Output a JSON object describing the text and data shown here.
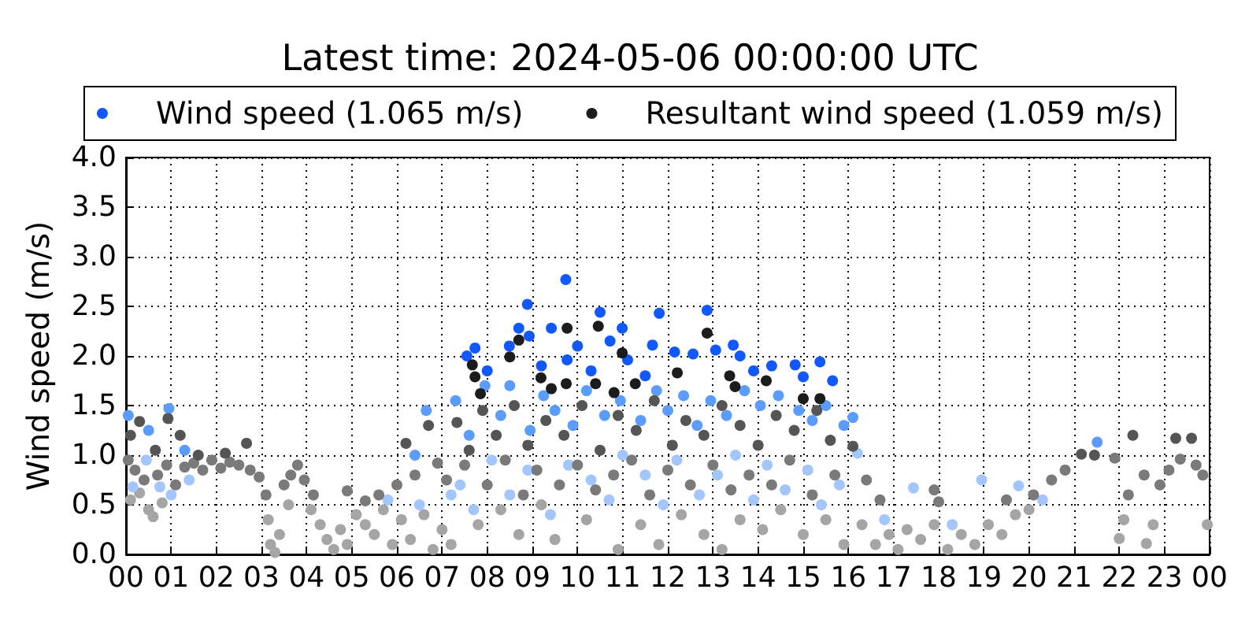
{
  "chart_data": {
    "type": "scatter",
    "title": "Latest time: 2024-05-06 00:00:00 UTC",
    "ylabel": "Wind speed (m/s)",
    "xlim": [
      0,
      24
    ],
    "xticks": [
      {
        "value": 0,
        "label": "00"
      },
      {
        "value": 1,
        "label": "01"
      },
      {
        "value": 2,
        "label": "02"
      },
      {
        "value": 3,
        "label": "03"
      },
      {
        "value": 4,
        "label": "04"
      },
      {
        "value": 5,
        "label": "05"
      },
      {
        "value": 6,
        "label": "06"
      },
      {
        "value": 7,
        "label": "07"
      },
      {
        "value": 8,
        "label": "08"
      },
      {
        "value": 9,
        "label": "09"
      },
      {
        "value": 10,
        "label": "10"
      },
      {
        "value": 11,
        "label": "11"
      },
      {
        "value": 12,
        "label": "12"
      },
      {
        "value": 13,
        "label": "13"
      },
      {
        "value": 14,
        "label": "14"
      },
      {
        "value": 15,
        "label": "15"
      },
      {
        "value": 16,
        "label": "16"
      },
      {
        "value": 17,
        "label": "17"
      },
      {
        "value": 18,
        "label": "18"
      },
      {
        "value": 19,
        "label": "19"
      },
      {
        "value": 20,
        "label": "20"
      },
      {
        "value": 21,
        "label": "21"
      },
      {
        "value": 22,
        "label": "22"
      },
      {
        "value": 23,
        "label": "23"
      },
      {
        "value": 24,
        "label": "00"
      }
    ],
    "ylim": [
      0,
      4
    ],
    "yticks": [
      {
        "value": 0,
        "label": "0.0"
      },
      0.5,
      {
        "value": 1,
        "label": "1.0"
      },
      1.5,
      {
        "value": 2,
        "label": "2.0"
      },
      2.5,
      {
        "value": 3,
        "label": "3.0"
      },
      3.5,
      {
        "value": 4,
        "label": "4.0"
      }
    ],
    "grid": true,
    "legend": "top",
    "marker": "circle",
    "series": [
      {
        "color": "#a5a5a5",
        "x": [
          0.1,
          0.3,
          0.5,
          0.6,
          0.8,
          3.15,
          3.2,
          3.3,
          3.4,
          3.6,
          4.1,
          4.3,
          4.45,
          4.6,
          4.75,
          4.9,
          5.1,
          5.3,
          5.5,
          5.7,
          5.9,
          6.1,
          6.3,
          6.6,
          6.8,
          7.0,
          7.2,
          7.8,
          8.3,
          8.7,
          9.2,
          9.5,
          10.2,
          10.9,
          11.4,
          11.8,
          12.3,
          12.8,
          13.2,
          13.6,
          14.1,
          14.5,
          15.0,
          15.5,
          15.9,
          16.3,
          16.6,
          16.9,
          17.1,
          17.3,
          17.6,
          17.9,
          18.2,
          18.5,
          18.8,
          19.1,
          19.4,
          19.7,
          20.0,
          22.0,
          22.1,
          22.6,
          22.75,
          23.95
        ],
        "values": [
          0.55,
          0.62,
          0.45,
          0.38,
          0.52,
          0.35,
          0.1,
          0.02,
          0.2,
          0.5,
          0.45,
          0.3,
          0.15,
          0.05,
          0.25,
          0.1,
          0.4,
          0.3,
          0.2,
          0.45,
          0.1,
          0.35,
          0.15,
          0.4,
          0.05,
          0.25,
          0.1,
          0.3,
          0.45,
          0.2,
          0.5,
          0.15,
          0.35,
          0.05,
          0.3,
          0.1,
          0.4,
          0.2,
          0.05,
          0.35,
          0.25,
          0.45,
          0.2,
          0.35,
          0.1,
          0.3,
          0.1,
          0.2,
          0.05,
          0.25,
          0.15,
          0.3,
          0.05,
          0.2,
          0.1,
          0.3,
          0.2,
          0.4,
          0.45,
          0.16,
          0.35,
          0.11,
          0.3,
          0.3
        ]
      },
      {
        "color": "#a3c6ff",
        "x": [
          0.15,
          0.45,
          0.75,
          1.0,
          1.4,
          5.8,
          6.5,
          7.2,
          7.4,
          7.7,
          8.1,
          8.5,
          8.9,
          9.4,
          9.8,
          10.3,
          10.7,
          11.0,
          11.5,
          11.9,
          12.2,
          12.7,
          13.1,
          13.5,
          13.9,
          14.2,
          14.6,
          15.1,
          15.4,
          15.8,
          16.2,
          16.8,
          17.44,
          18.3,
          18.95,
          19.77,
          20.3
        ],
        "values": [
          0.68,
          0.95,
          0.68,
          0.6,
          0.75,
          0.55,
          0.5,
          0.6,
          0.7,
          0.45,
          0.95,
          0.6,
          0.85,
          0.4,
          0.9,
          0.75,
          0.55,
          1.0,
          0.8,
          0.5,
          0.95,
          0.6,
          0.8,
          1.0,
          0.55,
          0.9,
          0.65,
          0.85,
          0.5,
          0.7,
          1.02,
          0.35,
          0.67,
          0.3,
          0.75,
          0.69,
          0.55
        ]
      },
      {
        "color": "#7a7a7a",
        "x": [
          0.05,
          0.2,
          0.4,
          0.7,
          0.9,
          1.1,
          1.3,
          1.5,
          1.7,
          1.9,
          2.1,
          2.3,
          2.5,
          2.75,
          2.95,
          3.1,
          3.5,
          3.65,
          3.8,
          3.95,
          4.15,
          4.9,
          5.3,
          5.6,
          6.0,
          6.4,
          6.9,
          7.1,
          7.5,
          8.0,
          8.4,
          8.8,
          9.1,
          9.6,
          10.0,
          10.4,
          10.8,
          11.2,
          11.6,
          12.0,
          12.5,
          13.0,
          13.4,
          13.8,
          14.3,
          14.7,
          15.2,
          15.7,
          16.4,
          16.7,
          17.9,
          18.0,
          19.5,
          20.1,
          20.5,
          20.8,
          21.9,
          22.2,
          22.55,
          22.9,
          23.1,
          23.35,
          23.7,
          23.85
        ],
        "values": [
          0.95,
          0.85,
          0.75,
          0.8,
          0.9,
          0.7,
          0.88,
          0.92,
          0.85,
          0.95,
          0.87,
          0.93,
          0.9,
          0.85,
          0.78,
          0.6,
          0.7,
          0.8,
          0.9,
          0.75,
          0.6,
          0.64,
          0.54,
          0.6,
          0.7,
          0.8,
          0.92,
          0.75,
          0.9,
          0.7,
          0.95,
          0.6,
          0.85,
          0.7,
          0.9,
          0.65,
          0.8,
          0.95,
          0.6,
          0.85,
          0.7,
          0.9,
          0.65,
          0.8,
          0.7,
          0.95,
          0.6,
          0.8,
          0.75,
          0.55,
          0.65,
          0.53,
          0.55,
          0.6,
          0.75,
          0.85,
          0.97,
          0.6,
          0.8,
          0.7,
          0.85,
          0.96,
          0.9,
          0.8
        ]
      },
      {
        "color": "#5a9cff",
        "x": [
          0.05,
          0.5,
          0.95,
          1.3,
          6.4,
          6.65,
          7.3,
          7.6,
          7.95,
          8.3,
          8.5,
          8.95,
          9.25,
          9.5,
          9.9,
          10.2,
          10.6,
          10.95,
          11.4,
          11.75,
          12.0,
          12.35,
          12.65,
          12.95,
          13.3,
          13.7,
          14.05,
          14.45,
          14.9,
          15.2,
          15.5,
          15.9,
          16.1,
          21.51
        ],
        "values": [
          1.4,
          1.25,
          1.47,
          1.05,
          1.0,
          1.45,
          1.55,
          1.2,
          1.7,
          1.4,
          1.7,
          1.25,
          1.6,
          1.45,
          1.3,
          1.65,
          1.4,
          1.55,
          1.35,
          1.65,
          1.45,
          1.6,
          1.3,
          1.55,
          1.4,
          1.65,
          1.5,
          1.6,
          1.45,
          1.35,
          1.5,
          1.3,
          1.38,
          1.13
        ]
      },
      {
        "color": "#555555",
        "x": [
          0.1,
          0.3,
          0.65,
          0.93,
          1.2,
          1.6,
          2.2,
          2.67,
          6.2,
          6.7,
          7.33,
          7.6,
          7.9,
          8.2,
          8.6,
          8.9,
          9.3,
          9.7,
          10.1,
          10.5,
          10.9,
          11.3,
          11.7,
          12.1,
          12.4,
          12.8,
          13.2,
          13.6,
          14.0,
          14.4,
          14.8,
          15.3,
          15.6,
          16.1,
          21.16,
          21.45,
          22.3,
          23.25,
          23.6
        ],
        "values": [
          1.2,
          1.34,
          1.05,
          1.37,
          1.2,
          1.0,
          1.02,
          1.12,
          1.12,
          1.3,
          1.33,
          1.05,
          1.45,
          1.2,
          1.5,
          1.1,
          1.35,
          1.2,
          1.5,
          1.05,
          1.4,
          1.25,
          1.55,
          1.1,
          1.35,
          1.2,
          1.5,
          1.3,
          1.1,
          1.4,
          1.25,
          1.45,
          1.15,
          1.09,
          1.01,
          1.0,
          1.2,
          1.17,
          1.17
        ]
      },
      {
        "name": "Wind speed (1.065 m/s)",
        "color": "#1158ff",
        "x": [
          7.55,
          7.73,
          8.0,
          8.49,
          8.7,
          8.89,
          8.93,
          9.2,
          9.42,
          9.74,
          9.77,
          10.0,
          10.3,
          10.5,
          10.72,
          10.99,
          11.11,
          11.5,
          11.66,
          11.81,
          12.15,
          12.56,
          12.87,
          13.06,
          13.45,
          13.6,
          13.9,
          14.3,
          14.82,
          15.0,
          15.37,
          15.65
        ],
        "values": [
          2.0,
          2.08,
          1.85,
          2.1,
          2.28,
          2.52,
          2.2,
          1.9,
          2.28,
          2.77,
          1.96,
          2.1,
          1.85,
          2.44,
          2.15,
          2.28,
          1.96,
          1.8,
          2.11,
          2.43,
          2.04,
          2.02,
          2.46,
          2.06,
          2.11,
          2.0,
          1.85,
          1.9,
          1.91,
          1.79,
          1.94,
          1.75
        ]
      },
      {
        "name": "Resultant wind speed (1.059 m/s)",
        "color": "#1c1c1c",
        "x": [
          7.67,
          7.73,
          7.85,
          8.5,
          8.7,
          9.19,
          9.42,
          9.75,
          9.77,
          10.4,
          10.46,
          10.81,
          10.99,
          11.28,
          12.21,
          12.87,
          13.37,
          13.49,
          14.18,
          15.0,
          15.37
        ],
        "values": [
          1.91,
          1.79,
          1.62,
          1.99,
          2.16,
          1.78,
          1.67,
          1.72,
          2.28,
          1.72,
          2.3,
          1.63,
          2.03,
          1.72,
          1.83,
          2.23,
          1.8,
          1.69,
          1.75,
          1.57,
          1.57
        ]
      }
    ]
  }
}
